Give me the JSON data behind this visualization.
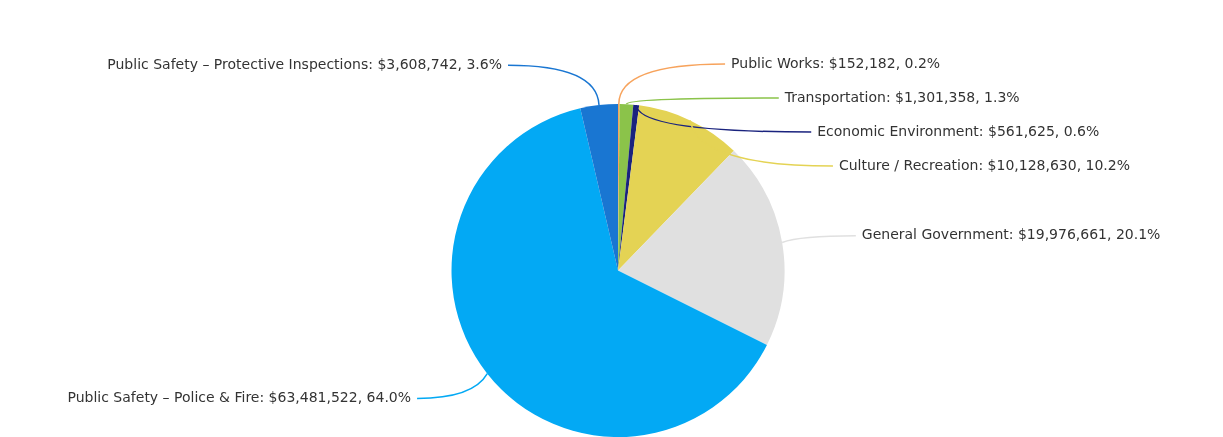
{
  "chart_data": {
    "type": "pie",
    "categories": [
      "Public Works",
      "Transportation",
      "Economic Environment",
      "Culture / Recreation",
      "General Government",
      "Public Safety – Police & Fire",
      "Public Safety – Protective Inspections"
    ],
    "values": [
      152182,
      1301358,
      561625,
      10128630,
      19976661,
      63481522,
      3608742
    ],
    "value_labels": [
      "$152,182, 0.2%",
      "$1,301,358, 1.3%",
      "$561,625, 0.6%",
      "$10,128,630, 10.2%",
      "$19,976,661, 20.1%",
      "$63,481,522, 64.0%",
      "$3,608,742, 3.6%"
    ],
    "colors": [
      "#f7a35c",
      "#8bc34a",
      "#1a237e",
      "#e4d354",
      "#e0e0e0",
      "#03a9f4",
      "#1976d2"
    ],
    "legend": false
  }
}
